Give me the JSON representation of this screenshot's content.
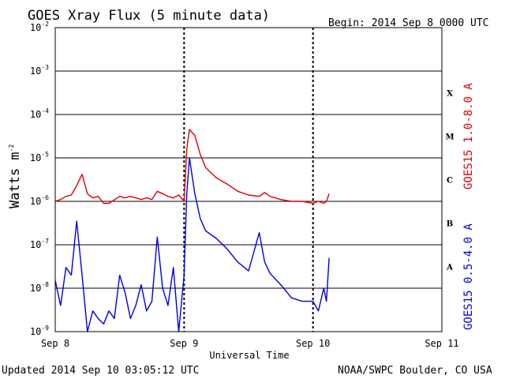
{
  "title": "GOES Xray Flux (5 minute data)",
  "begin": "Begin:  2014 Sep 8 0000 UTC",
  "updated": "Updated 2014 Sep 10 03:05:12 UTC",
  "credit": "NOAA/SWPC Boulder, CO USA",
  "chart_data": {
    "type": "line",
    "title": "GOES Xray Flux (5 minute data)",
    "xlabel": "Universal Time",
    "ylabel": "Watts m-2",
    "ylabel_main": "Watts m",
    "ylabel_exp": "-2",
    "yscale": "log",
    "ylim": [
      1e-09,
      0.01
    ],
    "xlim": [
      "2014-09-08 00:00",
      "2014-09-11 00:00"
    ],
    "x_ticks": [
      "Sep 8",
      "Sep 9",
      "Sep 10",
      "Sep 11"
    ],
    "y_ticks": [
      {
        "base": "10",
        "exp": "-2"
      },
      {
        "base": "10",
        "exp": "-3"
      },
      {
        "base": "10",
        "exp": "-4"
      },
      {
        "base": "10",
        "exp": "-5"
      },
      {
        "base": "10",
        "exp": "-6"
      },
      {
        "base": "10",
        "exp": "-7"
      },
      {
        "base": "10",
        "exp": "-8"
      },
      {
        "base": "10",
        "exp": "-9"
      }
    ],
    "flare_classes": [
      "X",
      "M",
      "C",
      "B",
      "A"
    ],
    "grid": true,
    "series": [
      {
        "name": "GOES15 1.0-8.0 A",
        "color": "#dd0000",
        "x": [
          "2014-09-08 00:00",
          "2014-09-08 01:00",
          "2014-09-08 02:00",
          "2014-09-08 03:00",
          "2014-09-08 04:00",
          "2014-09-08 05:00",
          "2014-09-08 06:00",
          "2014-09-08 07:00",
          "2014-09-08 08:00",
          "2014-09-08 09:00",
          "2014-09-08 10:00",
          "2014-09-08 12:00",
          "2014-09-08 13:00",
          "2014-09-08 14:00",
          "2014-09-08 15:00",
          "2014-09-08 16:00",
          "2014-09-08 17:00",
          "2014-09-08 18:00",
          "2014-09-08 19:00",
          "2014-09-08 20:00",
          "2014-09-08 21:00",
          "2014-09-08 22:00",
          "2014-09-08 23:00",
          "2014-09-09 00:00",
          "2014-09-09 00:30",
          "2014-09-09 01:00",
          "2014-09-09 02:00",
          "2014-09-09 03:00",
          "2014-09-09 04:00",
          "2014-09-09 06:00",
          "2014-09-09 08:00",
          "2014-09-09 10:00",
          "2014-09-09 12:00",
          "2014-09-09 14:00",
          "2014-09-09 15:00",
          "2014-09-09 16:00",
          "2014-09-09 18:00",
          "2014-09-09 20:00",
          "2014-09-09 22:00",
          "2014-09-10 00:00",
          "2014-09-10 01:00",
          "2014-09-10 02:00",
          "2014-09-10 02:30",
          "2014-09-10 03:00"
        ],
        "values": [
          1e-06,
          1.1e-06,
          1.3e-06,
          1.4e-06,
          2.3e-06,
          4.2e-06,
          1.5e-06,
          1.2e-06,
          1.3e-06,
          9e-07,
          9e-07,
          1.3e-06,
          1.2e-06,
          1.3e-06,
          1.2e-06,
          1.1e-06,
          1.2e-06,
          1.1e-06,
          1.7e-06,
          1.5e-06,
          1.3e-06,
          1.2e-06,
          1.4e-06,
          1e-06,
          1.6e-05,
          4.5e-05,
          3.3e-05,
          1.2e-05,
          6e-06,
          3.5e-06,
          2.5e-06,
          1.7e-06,
          1.4e-06,
          1.3e-06,
          1.6e-06,
          1.3e-06,
          1.1e-06,
          1e-06,
          1e-06,
          9e-07,
          1e-06,
          9e-07,
          1e-06,
          1.5e-06
        ]
      },
      {
        "name": "GOES15 0.5-4.0 A",
        "color": "#0000dd",
        "x": [
          "2014-09-08 00:00",
          "2014-09-08 01:00",
          "2014-09-08 02:00",
          "2014-09-08 03:00",
          "2014-09-08 04:00",
          "2014-09-08 05:00",
          "2014-09-08 06:00",
          "2014-09-08 07:00",
          "2014-09-08 08:00",
          "2014-09-08 09:00",
          "2014-09-08 10:00",
          "2014-09-08 11:00",
          "2014-09-08 12:00",
          "2014-09-08 13:00",
          "2014-09-08 14:00",
          "2014-09-08 15:00",
          "2014-09-08 16:00",
          "2014-09-08 17:00",
          "2014-09-08 18:00",
          "2014-09-08 19:00",
          "2014-09-08 20:00",
          "2014-09-08 21:00",
          "2014-09-08 22:00",
          "2014-09-08 23:00",
          "2014-09-09 00:00",
          "2014-09-09 00:30",
          "2014-09-09 01:00",
          "2014-09-09 02:00",
          "2014-09-09 03:00",
          "2014-09-09 04:00",
          "2014-09-09 06:00",
          "2014-09-09 08:00",
          "2014-09-09 10:00",
          "2014-09-09 12:00",
          "2014-09-09 14:00",
          "2014-09-09 15:00",
          "2014-09-09 16:00",
          "2014-09-09 18:00",
          "2014-09-09 20:00",
          "2014-09-09 22:00",
          "2014-09-10 00:00",
          "2014-09-10 01:00",
          "2014-09-10 02:00",
          "2014-09-10 02:30",
          "2014-09-10 03:00"
        ],
        "values": [
          1.5e-08,
          4e-09,
          3e-08,
          2e-08,
          3.5e-07,
          2e-08,
          1e-09,
          3e-09,
          2e-09,
          1.5e-09,
          3e-09,
          2e-09,
          2e-08,
          8e-09,
          2e-09,
          4e-09,
          1.2e-08,
          3e-09,
          5e-09,
          1.5e-07,
          1e-08,
          4e-09,
          3e-08,
          1e-09,
          2e-08,
          1.5e-06,
          1e-05,
          1.5e-06,
          4e-07,
          2.1e-07,
          1.4e-07,
          8e-08,
          4e-08,
          2.5e-08,
          1.9e-07,
          4e-08,
          2.2e-08,
          1.2e-08,
          6e-09,
          5e-09,
          5e-09,
          3e-09,
          1e-08,
          5e-09,
          5e-08
        ]
      }
    ]
  }
}
